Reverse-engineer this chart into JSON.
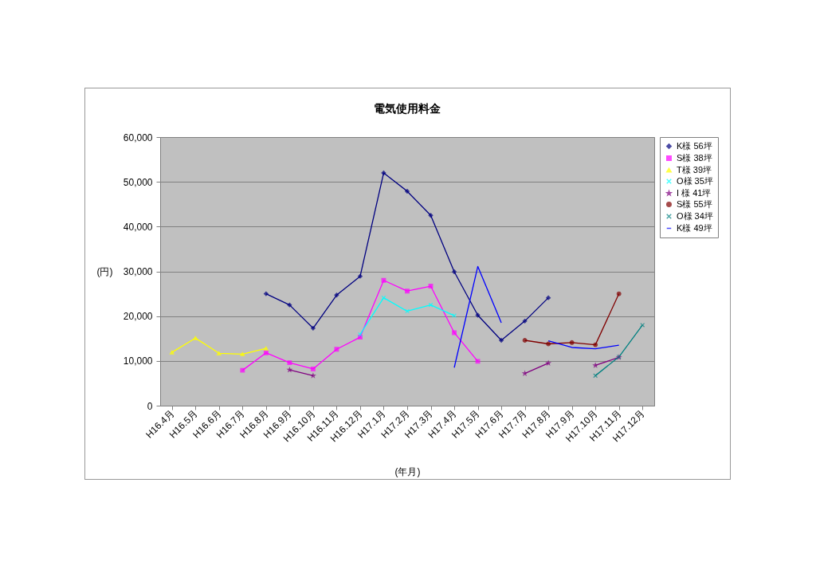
{
  "chart_data": {
    "type": "line",
    "title": "電気使用料金",
    "xlabel": "(年月)",
    "ylabel": "(円)",
    "categories": [
      "H16.4月",
      "H16.5月",
      "H16.6月",
      "H16.7月",
      "H16.8月",
      "H16.9月",
      "H16.10月",
      "H16.11月",
      "H16.12月",
      "H17.1月",
      "H17.2月",
      "H17.3月",
      "H17.4月",
      "H17.5月",
      "H17.6月",
      "H17.7月",
      "H17.8月",
      "H17.9月",
      "H17.10月",
      "H17.11月",
      "H17.12月"
    ],
    "ylim": [
      0,
      60000
    ],
    "yticks": [
      0,
      {
        "value": 10000,
        "label": "10,000"
      },
      {
        "value": 20000,
        "label": "20,000"
      },
      {
        "value": 30000,
        "label": "30,000"
      },
      {
        "value": 40000,
        "label": "40,000"
      },
      {
        "value": 50000,
        "label": "50,000"
      },
      {
        "value": 60000,
        "label": "60,000"
      }
    ],
    "grid": "y",
    "legend": "right",
    "line_style": "solid",
    "series": [
      {
        "name": "K様 56坪",
        "color": "#000080",
        "marker": "diamond",
        "values": [
          null,
          null,
          null,
          null,
          25000,
          22500,
          17300,
          24700,
          28900,
          52000,
          47900,
          42500,
          29900,
          20200,
          14600,
          18900,
          24100,
          null,
          null,
          null,
          null
        ]
      },
      {
        "name": "S様 38坪",
        "color": "#ff00ff",
        "marker": "square",
        "values": [
          null,
          null,
          null,
          7900,
          11800,
          9600,
          8200,
          12600,
          15300,
          28000,
          25600,
          26700,
          16300,
          9900,
          null,
          null,
          null,
          null,
          null,
          null,
          null
        ]
      },
      {
        "name": "T様 39坪",
        "color": "#ffff00",
        "marker": "triangle",
        "values": [
          11900,
          15100,
          11700,
          11500,
          12800,
          null,
          null,
          null,
          null,
          null,
          null,
          null,
          null,
          null,
          null,
          null,
          null,
          null,
          null,
          null,
          null
        ]
      },
      {
        "name": "O様 35坪",
        "color": "#00ffff",
        "marker": "cross",
        "values": [
          null,
          null,
          null,
          null,
          null,
          null,
          null,
          null,
          15900,
          24100,
          21100,
          22500,
          20100,
          null,
          null,
          null,
          null,
          null,
          null,
          null,
          null
        ]
      },
      {
        "name": "I 様 41坪",
        "color": "#800080",
        "marker": "star",
        "values": [
          null,
          null,
          null,
          null,
          null,
          8000,
          6700,
          null,
          null,
          null,
          null,
          null,
          null,
          null,
          null,
          7200,
          9500,
          null,
          9000,
          10800,
          null
        ]
      },
      {
        "name": "S様 55坪",
        "color": "#800000",
        "marker": "circle",
        "values": [
          null,
          null,
          null,
          null,
          null,
          null,
          null,
          null,
          null,
          null,
          null,
          null,
          null,
          null,
          null,
          14600,
          13800,
          14100,
          13600,
          25000,
          null
        ]
      },
      {
        "name": "O様 34坪",
        "color": "#008080",
        "marker": "cross",
        "values": [
          null,
          null,
          null,
          null,
          null,
          null,
          null,
          null,
          null,
          null,
          null,
          null,
          null,
          null,
          null,
          null,
          null,
          null,
          6700,
          10900,
          18000
        ]
      },
      {
        "name": "K様 49坪",
        "color": "#0000ff",
        "marker": "none",
        "values": [
          null,
          null,
          null,
          null,
          null,
          null,
          null,
          null,
          null,
          null,
          null,
          null,
          8500,
          31100,
          18500,
          null,
          14500,
          13000,
          12700,
          13500,
          null
        ]
      }
    ]
  }
}
